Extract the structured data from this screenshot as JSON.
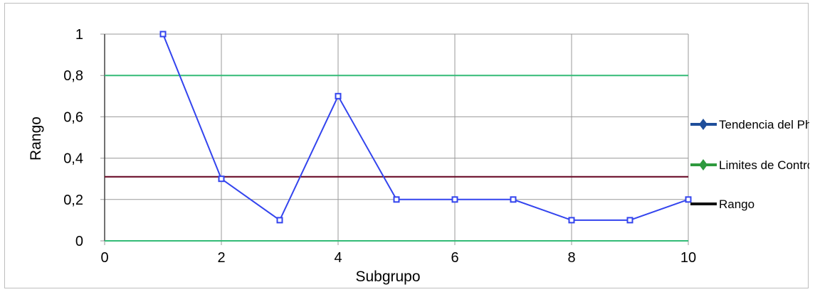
{
  "chart_data": {
    "type": "line",
    "xlabel": "Subgrupo",
    "ylabel": "Rango",
    "xlim": [
      0,
      10
    ],
    "ylim": [
      0,
      1
    ],
    "x_ticks": [
      0,
      2,
      4,
      6,
      8,
      10
    ],
    "y_ticks": [
      0,
      0.2,
      0.4,
      0.6,
      0.8,
      1
    ],
    "x_tick_labels": [
      "0",
      "2",
      "4",
      "6",
      "8",
      "10"
    ],
    "y_tick_labels": [
      "0",
      "0,2",
      "0,4",
      "0,6",
      "0,8",
      "1"
    ],
    "grid": true,
    "legend_position": "right",
    "series": [
      {
        "name": "Tendencia del Ph",
        "color": "#3344ee",
        "x": [
          1,
          2,
          3,
          4,
          5,
          6,
          7,
          8,
          9,
          10
        ],
        "values": [
          1,
          0.3,
          0.1,
          0.7,
          0.2,
          0.2,
          0.2,
          0.1,
          0.1,
          0.2
        ]
      },
      {
        "name": "Limites de Control",
        "color": "#33bb77",
        "lines": [
          0.8,
          0
        ]
      },
      {
        "name": "Rango",
        "color": "#6b0f2a",
        "lines": [
          0.31
        ]
      }
    ],
    "legend": [
      {
        "label": "Tendencia del Ph",
        "color": "#1f4e9a"
      },
      {
        "label": "Limites de Control",
        "color": "#2e9a3e"
      },
      {
        "label": "Rango",
        "color": "#111111"
      }
    ]
  }
}
